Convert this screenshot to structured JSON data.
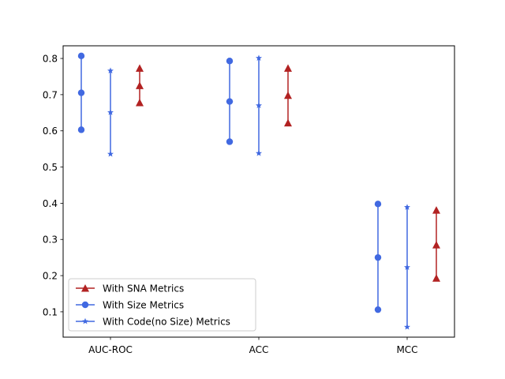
{
  "chart_data": {
    "type": "scatter",
    "title": "",
    "xlabel": "",
    "ylabel": "",
    "categories": [
      "AUC-ROC",
      "ACC",
      "MCC"
    ],
    "ylim": [
      0.03,
      0.835
    ],
    "yticks": [
      0.1,
      0.2,
      0.3,
      0.4,
      0.5,
      0.6,
      0.7,
      0.8
    ],
    "grid": false,
    "legend_placement": "lower-left",
    "series": [
      {
        "name": "With SNA Metrics",
        "color": "#b22222",
        "marker": "triangle",
        "offset": 1,
        "ranges": [
          {
            "category": "AUC-ROC",
            "min": 0.678,
            "mean": 0.725,
            "max": 0.773
          },
          {
            "category": "ACC",
            "min": 0.622,
            "mean": 0.698,
            "max": 0.773
          },
          {
            "category": "MCC",
            "min": 0.193,
            "mean": 0.285,
            "max": 0.381
          }
        ]
      },
      {
        "name": "With Size Metrics",
        "color": "#4169e1",
        "marker": "circle",
        "offset": -1,
        "ranges": [
          {
            "category": "AUC-ROC",
            "min": 0.603,
            "mean": 0.705,
            "max": 0.807
          },
          {
            "category": "ACC",
            "min": 0.57,
            "mean": 0.681,
            "max": 0.793
          },
          {
            "category": "MCC",
            "min": 0.106,
            "mean": 0.25,
            "max": 0.398
          }
        ]
      },
      {
        "name": "With Code(no Size) Metrics",
        "color": "#4169e1",
        "marker": "star",
        "offset": 0,
        "ranges": [
          {
            "category": "AUC-ROC",
            "min": 0.536,
            "mean": 0.651,
            "max": 0.766
          },
          {
            "category": "ACC",
            "min": 0.538,
            "mean": 0.67,
            "max": 0.801
          },
          {
            "category": "MCC",
            "min": 0.058,
            "mean": 0.223,
            "max": 0.389
          }
        ]
      }
    ]
  }
}
